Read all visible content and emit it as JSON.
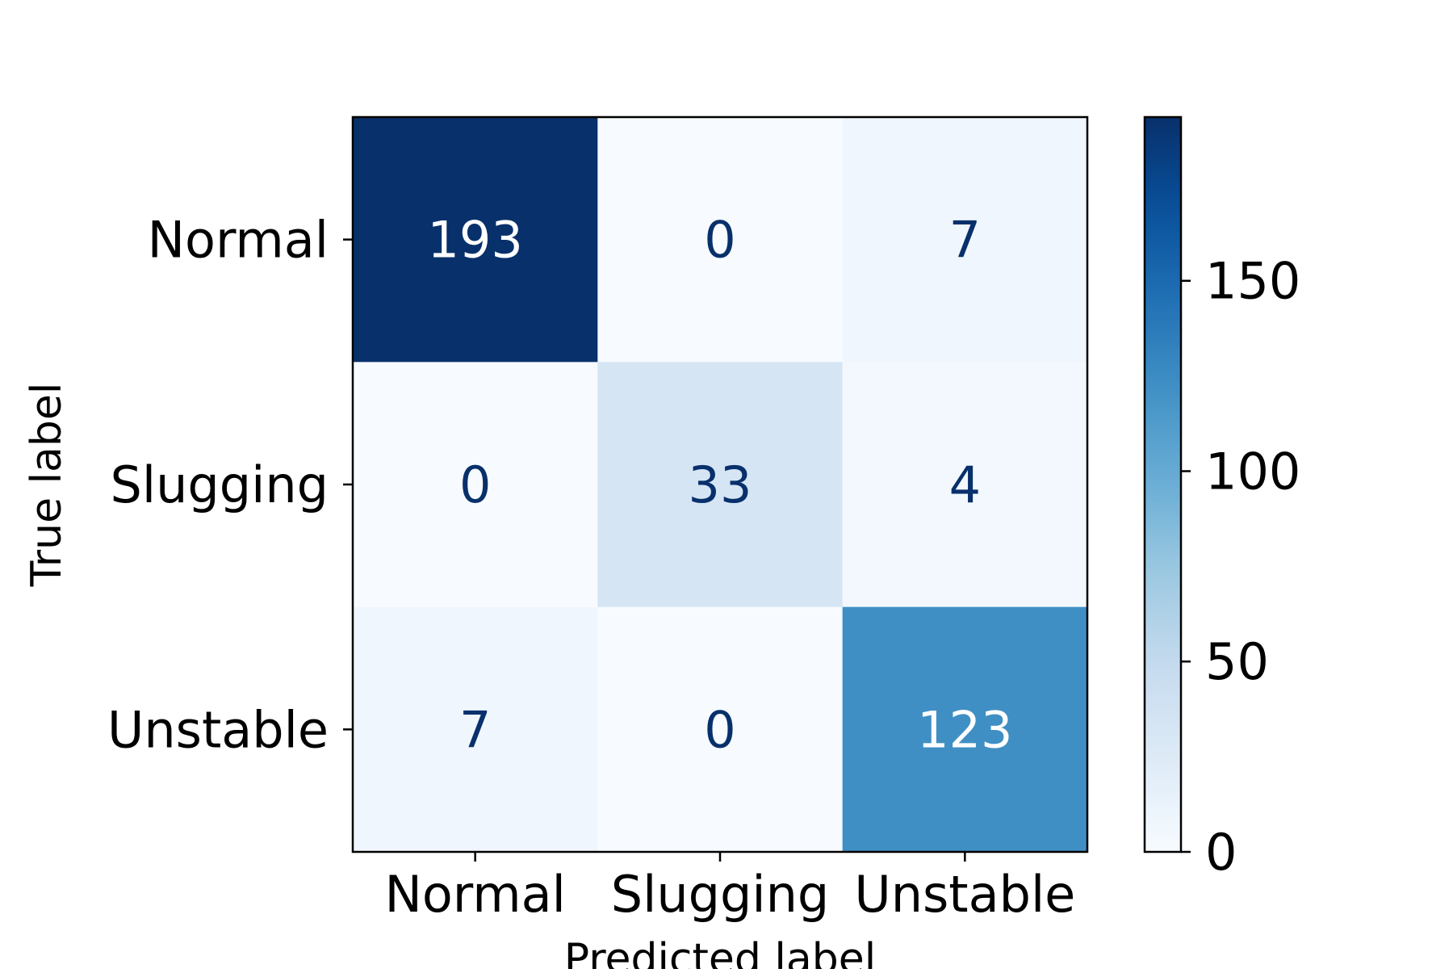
{
  "chart_data": {
    "type": "heatmap",
    "title": "",
    "xlabel": "Predicted label",
    "ylabel": "True label",
    "x_categories": [
      "Normal",
      "Slugging",
      "Unstable"
    ],
    "y_categories": [
      "Normal",
      "Slugging",
      "Unstable"
    ],
    "values": [
      [
        193,
        0,
        7
      ],
      [
        0,
        33,
        4
      ],
      [
        7,
        0,
        123
      ]
    ],
    "colormap": "Blues",
    "colorbar": {
      "range": [
        0,
        193
      ],
      "ticks": [
        0,
        50,
        100,
        150
      ]
    },
    "grid": false
  }
}
